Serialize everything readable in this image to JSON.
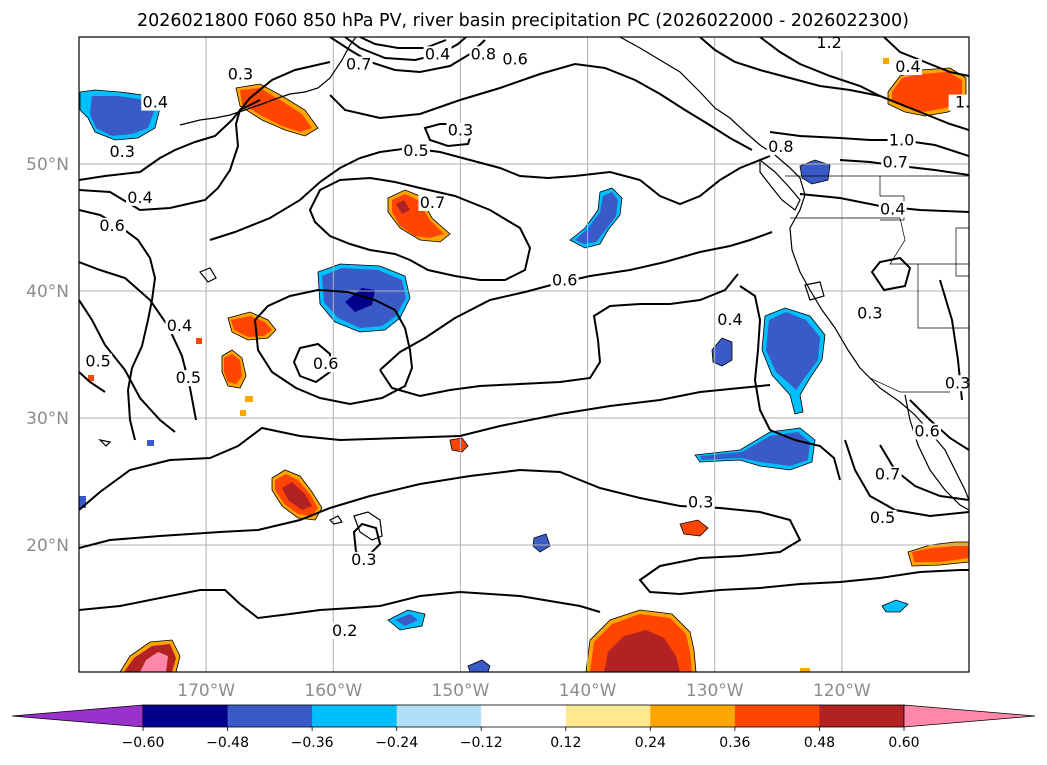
{
  "title": "2026021800 F060 850 hPa PV, river basin precipitation PC (2026022000 - 2026022300)",
  "map": {
    "lon_range": [
      -180,
      -110
    ],
    "lat_range": [
      10,
      60
    ],
    "lat_labels": [
      {
        "lat": 50,
        "text": "50°N"
      },
      {
        "lat": 40,
        "text": "40°N"
      },
      {
        "lat": 30,
        "text": "30°N"
      },
      {
        "lat": 20,
        "text": "20°N"
      }
    ],
    "lon_labels": [
      {
        "lon": -170,
        "text": "170°W"
      },
      {
        "lon": -160,
        "text": "160°W"
      },
      {
        "lon": -150,
        "text": "150°W"
      },
      {
        "lon": -140,
        "text": "140°W"
      },
      {
        "lon": -130,
        "text": "130°W"
      },
      {
        "lon": -120,
        "text": "120°W"
      }
    ],
    "contour_labels": [
      {
        "text": "0.3",
        "lon": -167.3,
        "lat": 56.8
      },
      {
        "text": "0.4",
        "lon": -174.0,
        "lat": 54.6
      },
      {
        "text": "0.3",
        "lon": -176.6,
        "lat": 50.7
      },
      {
        "text": "0.4",
        "lon": -175.2,
        "lat": 47.1
      },
      {
        "text": "0.6",
        "lon": -177.4,
        "lat": 44.9
      },
      {
        "text": "0.5",
        "lon": -153.5,
        "lat": 50.8
      },
      {
        "text": "0.3",
        "lon": -150.0,
        "lat": 52.4
      },
      {
        "text": "0.7",
        "lon": -152.2,
        "lat": 46.7
      },
      {
        "text": "0.6",
        "lon": -141.8,
        "lat": 40.6
      },
      {
        "text": "0.6",
        "lon": -160.6,
        "lat": 34.0
      },
      {
        "text": "0.4",
        "lon": -172.1,
        "lat": 37.0
      },
      {
        "text": "0.5",
        "lon": -171.4,
        "lat": 32.9
      },
      {
        "text": "0.3",
        "lon": -131.1,
        "lat": 23.1
      },
      {
        "text": "0.3",
        "lon": -157.6,
        "lat": 18.6
      },
      {
        "text": "0.2",
        "lon": -159.1,
        "lat": 13.0
      },
      {
        "text": "0.4",
        "lon": -128.8,
        "lat": 37.5
      },
      {
        "text": "0.3",
        "lon": -117.8,
        "lat": 38.0
      },
      {
        "text": "0.8",
        "lon": -124.8,
        "lat": 51.1
      },
      {
        "text": "1.2",
        "lon": -121.0,
        "lat": 59.3
      },
      {
        "text": "1.0",
        "lon": -115.3,
        "lat": 51.6
      },
      {
        "text": "0.7",
        "lon": -115.8,
        "lat": 49.9
      },
      {
        "text": "0.4",
        "lon": -116.0,
        "lat": 46.2
      },
      {
        "text": "0.5",
        "lon": -116.8,
        "lat": 21.9
      },
      {
        "text": "0.6",
        "lon": -113.3,
        "lat": 28.7
      },
      {
        "text": "0.3",
        "lon": -110.9,
        "lat": 32.5
      },
      {
        "text": "0.7",
        "lon": -116.4,
        "lat": 25.3
      },
      {
        "text": "0.4",
        "lon": -114.8,
        "lat": 57.4
      },
      {
        "text": "0.8",
        "lon": -148.2,
        "lat": 58.4
      },
      {
        "text": "0.6",
        "lon": -145.7,
        "lat": 58.0
      },
      {
        "text": "0.7",
        "lon": -158.0,
        "lat": 57.6
      },
      {
        "text": "0.4",
        "lon": -151.8,
        "lat": 58.4
      },
      {
        "text": "0.5",
        "lon": -178.5,
        "lat": 34.2
      },
      {
        "text": "1.",
        "lon": -110.5,
        "lat": 54.6
      }
    ]
  },
  "colorbar": {
    "ticks": [
      "−0.60",
      "−0.48",
      "−0.36",
      "−0.24",
      "−0.12",
      "0.12",
      "0.24",
      "0.36",
      "0.48",
      "0.60"
    ],
    "colors": [
      "#9932CC",
      "#00008B",
      "#3A5BC7",
      "#00BFFF",
      "#B0E0F8",
      "#FFFFFF",
      "#FFE98F",
      "#FFA500",
      "#FF4500",
      "#B22222",
      "#FF88AA",
      "#FF88AA"
    ]
  }
}
